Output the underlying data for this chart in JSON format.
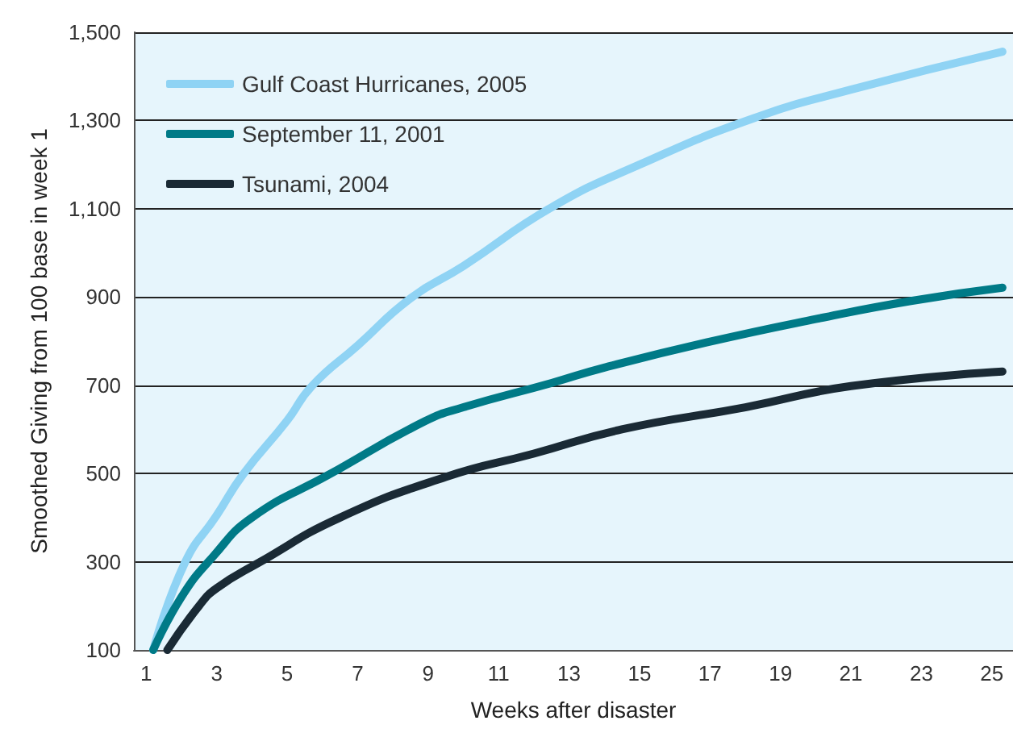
{
  "chart_data": {
    "type": "line",
    "xlabel": "Weeks after disaster",
    "ylabel": "Smoothed Giving from 100 base in week 1",
    "xlim": [
      0.65,
      25.6
    ],
    "xticks": [
      1,
      3,
      5,
      7,
      9,
      11,
      13,
      15,
      17,
      19,
      21,
      23,
      25
    ],
    "ylim": [
      100,
      1500
    ],
    "yticks": [
      100,
      {
        "value": 300,
        "label": "300"
      },
      {
        "value": 500,
        "label": "500"
      },
      {
        "value": 700,
        "label": "700"
      },
      {
        "value": 900,
        "label": "900"
      },
      {
        "value": 1100,
        "label": "1,100"
      },
      {
        "value": 1300,
        "label": "1,300"
      },
      {
        "value": 1500,
        "label": "1,500"
      }
    ],
    "grid": "y",
    "legend": "top left",
    "marker": "none",
    "line_style": "solid",
    "series": [
      {
        "name": "Gulf Coast Hurricanes, 2005",
        "color": "#8fd3f4",
        "x": [
          1.2,
          2.1,
          3,
          3.75,
          5,
          5.7,
          7,
          8.5,
          10,
          12.5,
          15,
          18.2,
          21,
          25.3
        ],
        "values": [
          100,
          298,
          405,
          498,
          620,
          698,
          790,
          897,
          970,
          1103,
          1200,
          1304,
          1370,
          1456
        ]
      },
      {
        "name": "September 11, 2001",
        "color": "#007a87",
        "x": [
          1.2,
          2,
          2.9,
          4,
          6.2,
          8.9,
          10,
          12.5,
          14,
          16.9,
          20,
          22.7,
          25.3
        ],
        "values": [
          100,
          220,
          312,
          400,
          498,
          618,
          650,
          705,
          740,
          797,
          850,
          891,
          921
        ]
      },
      {
        "name": "Tsunami, 2004",
        "color": "#1a2a35",
        "x": [
          1.6,
          2.5,
          3,
          4.2,
          6.5,
          9.5,
          12,
          14.5,
          18,
          21.0,
          25.3
        ],
        "values": [
          100,
          200,
          240,
          298,
          400,
          492,
          545,
          600,
          650,
          698,
          731
        ]
      }
    ]
  }
}
